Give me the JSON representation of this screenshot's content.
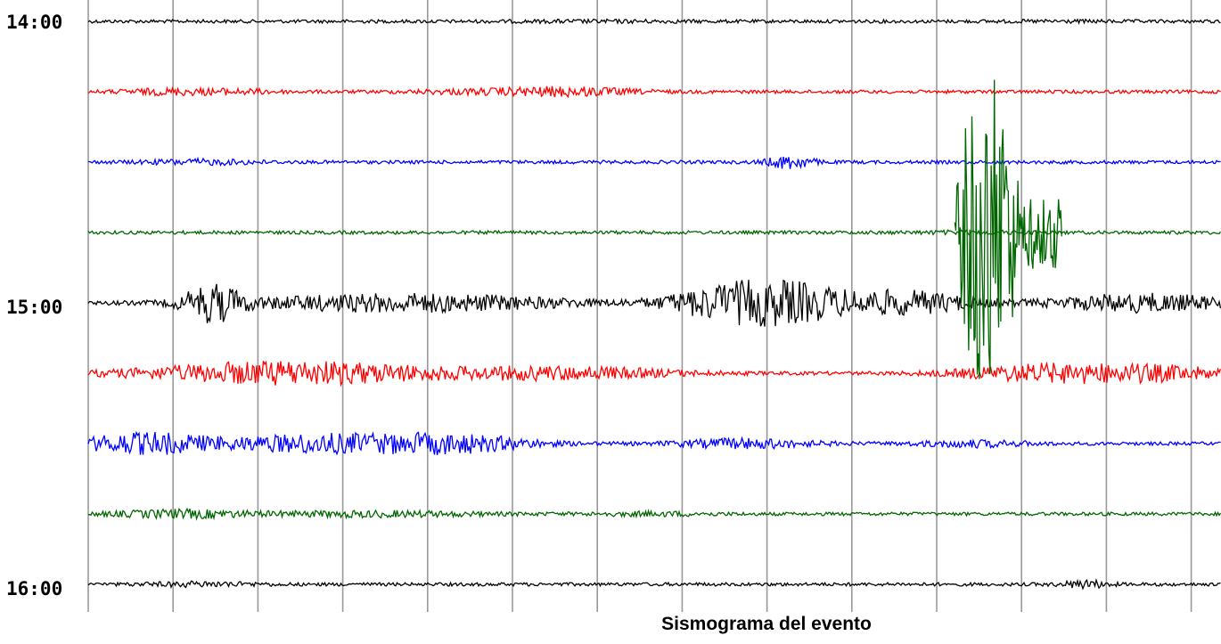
{
  "caption": "Sismograma del evento",
  "chart_data": {
    "type": "line",
    "title": "",
    "xlabel": "",
    "ylabel": "",
    "grid": true,
    "time_labels": [
      "14:00",
      "15:00",
      "16:00"
    ],
    "trace_colors": [
      "#000000",
      "#ff0000",
      "#0000ff",
      "#006600"
    ],
    "series": [
      {
        "color": "#000000",
        "bursts": [
          [
            0.45,
            0.08,
            0.2
          ],
          [
            0.86,
            0.05,
            0.15
          ]
        ]
      },
      {
        "color": "#ff0000",
        "bursts": [
          [
            0.07,
            0.04,
            0.8
          ],
          [
            0.13,
            0.04,
            0.6
          ],
          [
            0.33,
            0.05,
            0.5
          ],
          [
            0.42,
            0.06,
            1.4
          ]
        ]
      },
      {
        "color": "#0000ff",
        "bursts": [
          [
            0.1,
            0.05,
            0.7
          ],
          [
            0.62,
            0.02,
            2.2
          ]
        ]
      },
      {
        "color": "#006600",
        "bursts": [
          [
            0.78,
            0.06,
            0.3
          ]
        ]
      },
      {
        "color": "#000000",
        "bursts": [
          [
            0.11,
            0.025,
            6
          ],
          [
            0.28,
            0.15,
            3
          ],
          [
            0.56,
            0.05,
            5
          ],
          [
            0.62,
            0.05,
            6
          ],
          [
            0.72,
            0.06,
            4
          ],
          [
            0.93,
            0.08,
            3
          ]
        ]
      },
      {
        "color": "#ff0000",
        "bursts": [
          [
            0.18,
            0.13,
            4
          ],
          [
            0.42,
            0.1,
            2
          ],
          [
            0.85,
            0.08,
            3
          ],
          [
            0.95,
            0.06,
            2
          ]
        ]
      },
      {
        "color": "#0000ff",
        "bursts": [
          [
            0.05,
            0.06,
            3.5
          ],
          [
            0.2,
            0.08,
            3
          ],
          [
            0.32,
            0.07,
            3
          ],
          [
            0.58,
            0.06,
            1.5
          ],
          [
            0.78,
            0.05,
            1
          ]
        ]
      },
      {
        "color": "#006600",
        "bursts": [
          [
            0.08,
            0.06,
            1.2
          ],
          [
            0.25,
            0.1,
            0.8
          ],
          [
            0.5,
            0.05,
            0.5
          ]
        ]
      },
      {
        "color": "#000000",
        "bursts": [
          [
            0.1,
            0.05,
            0.6
          ],
          [
            0.88,
            0.02,
            1.2
          ]
        ]
      }
    ],
    "green_event": {
      "color": "#006600",
      "start": 0.765,
      "end": 0.86,
      "amplitude": 11
    }
  }
}
